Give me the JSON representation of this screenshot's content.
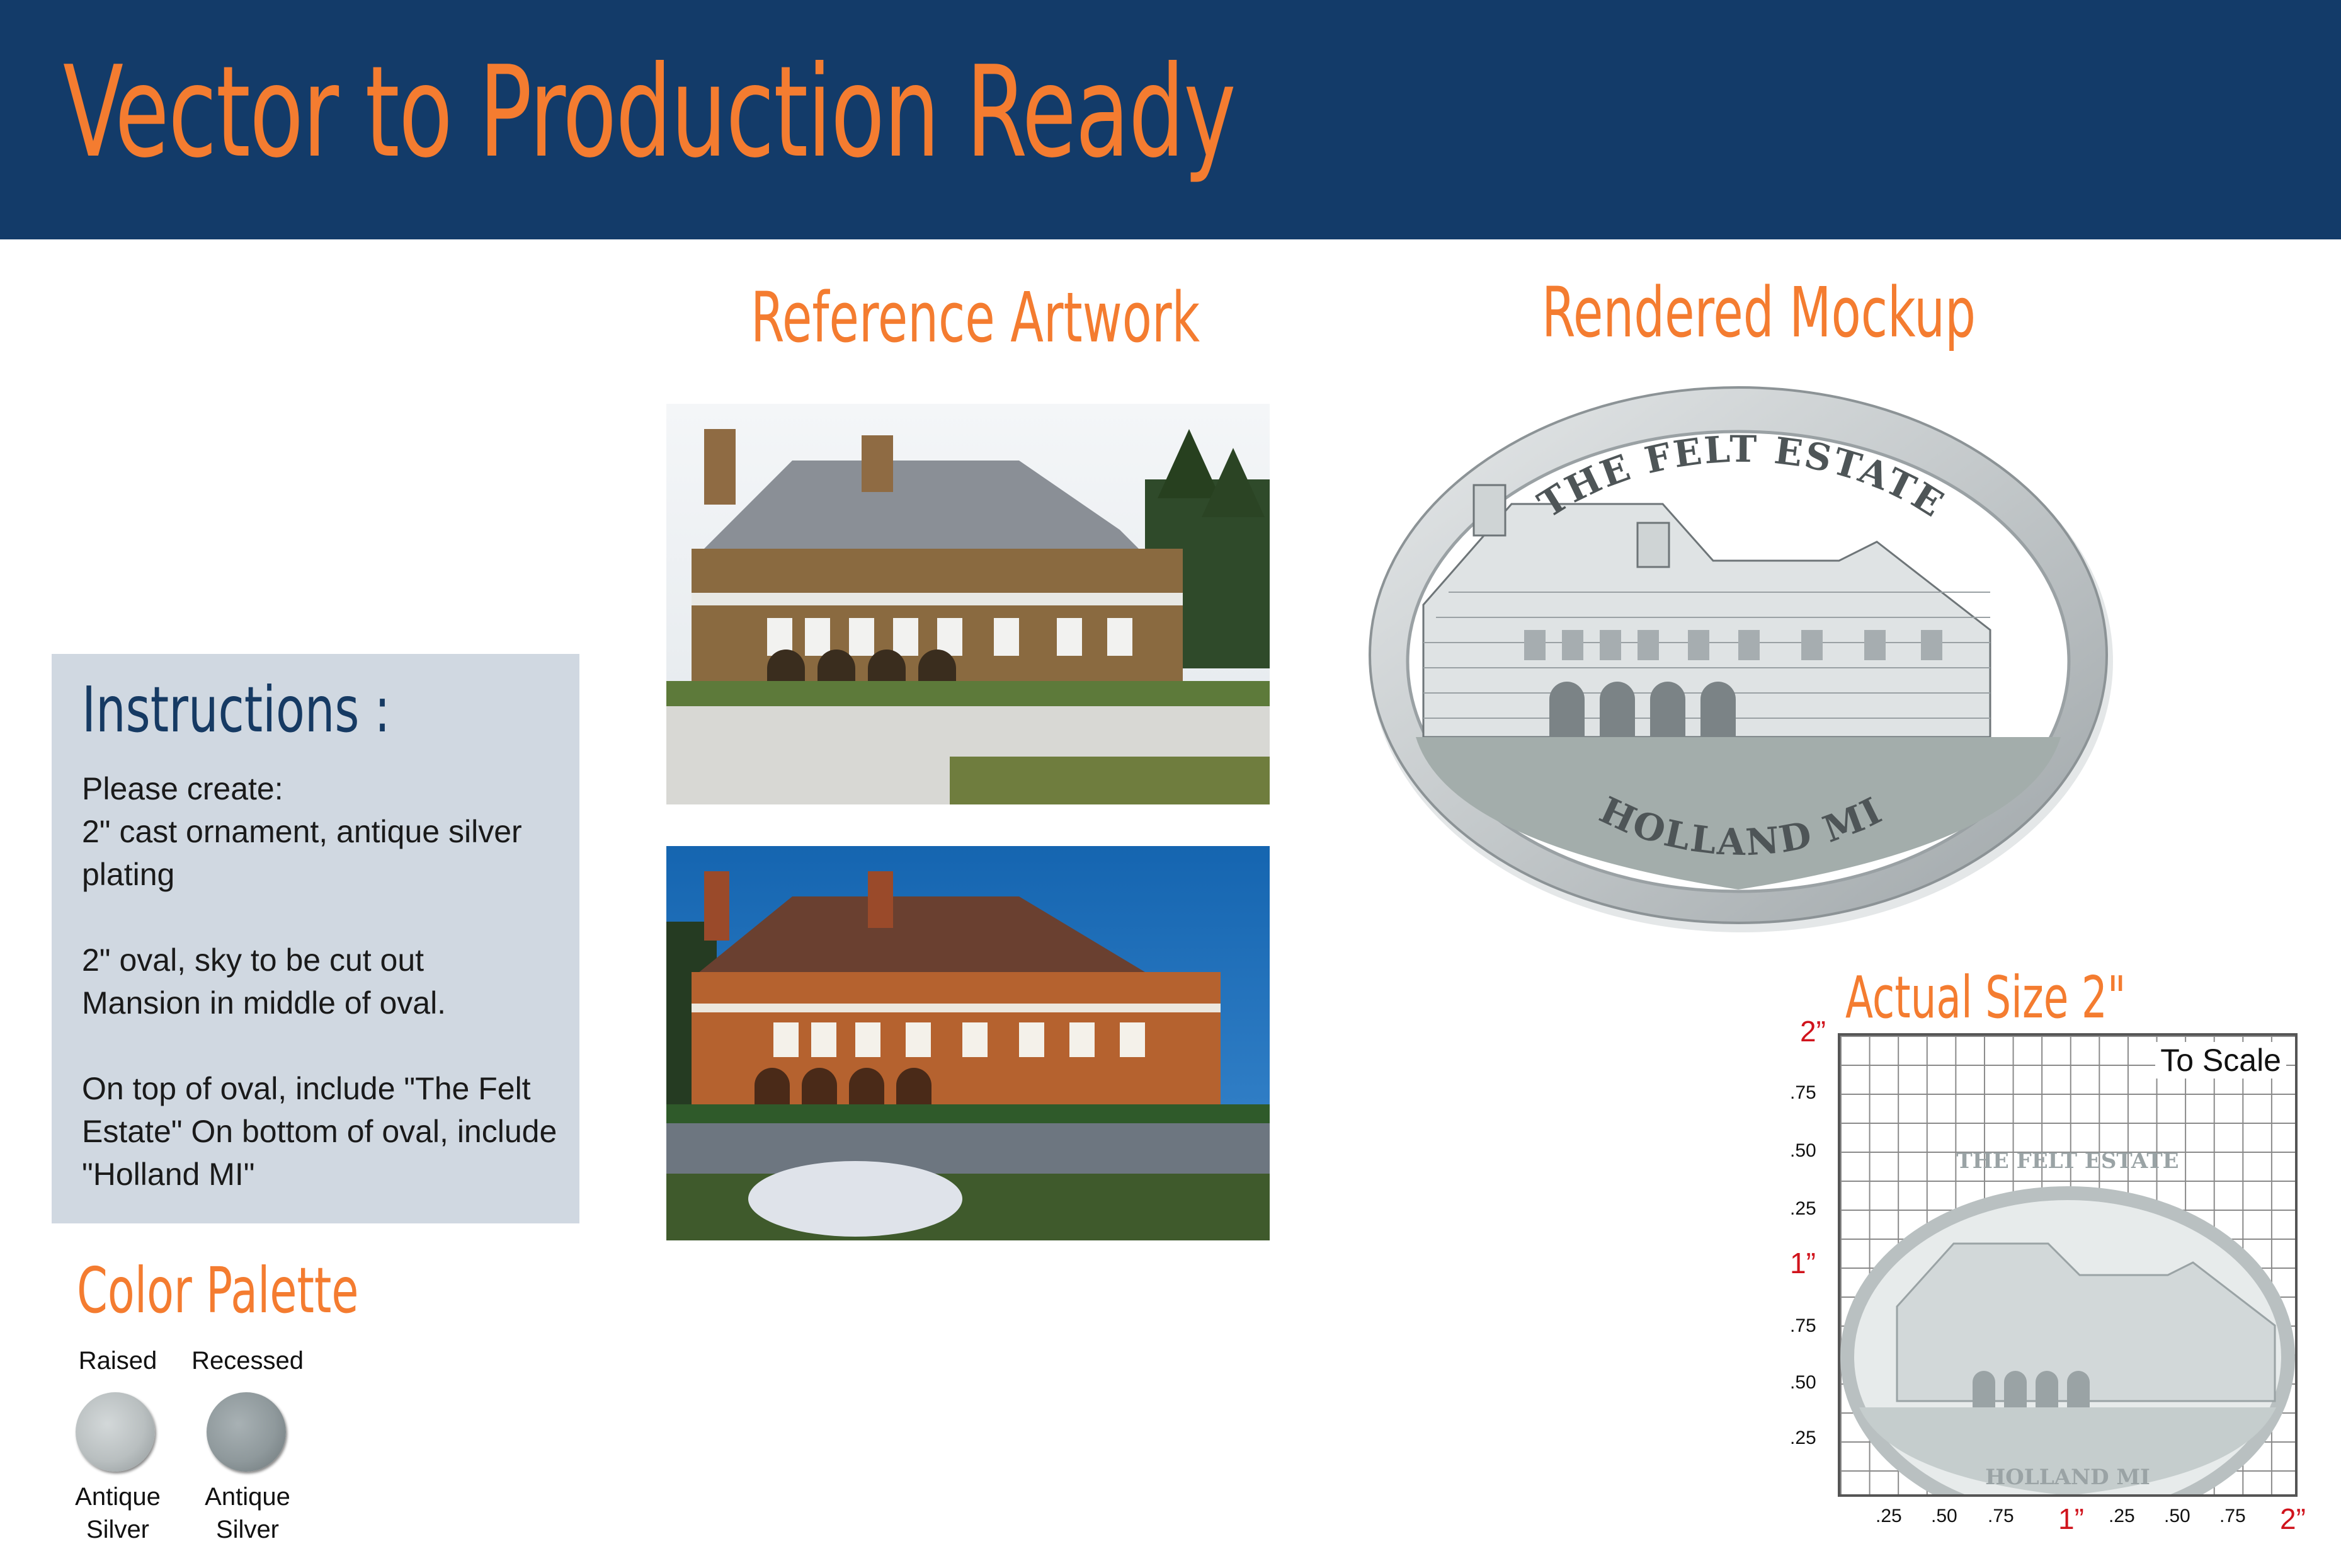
{
  "header": {
    "title": "Vector to Production Ready"
  },
  "sections": {
    "reference": "Reference Artwork",
    "mockup": "Rendered Mockup",
    "actual_size": "Actual Size 2\""
  },
  "instructions": {
    "title": "Instructions :",
    "lines": [
      "Please create:",
      "2\" cast ornament, antique silver plating",
      "2\" oval, sky to be cut out",
      "Mansion in middle of oval.",
      "On top of oval, include \"The Felt Estate\" On bottom of oval, include \"Holland MI\""
    ]
  },
  "palette": {
    "title": "Color Palette",
    "swatches": [
      {
        "label": "Raised",
        "name": "Antique Silver",
        "color": "#b9bfc0"
      },
      {
        "label": "Recessed",
        "name": "Antique Silver",
        "color": "#8f999c"
      }
    ]
  },
  "ornament": {
    "top_text": "THE FELT ESTATE",
    "bottom_text": "HOLLAND MI"
  },
  "scale_grid": {
    "to_scale": "To Scale",
    "y_labels": [
      "2”",
      ".75",
      ".50",
      ".25",
      "1”",
      ".75",
      ".50",
      ".25"
    ],
    "x_labels": [
      ".25",
      ".50",
      ".75",
      "1”",
      ".25",
      ".50",
      ".75",
      "2”"
    ]
  },
  "colors": {
    "navy": "#133b69",
    "orange": "#f47c30",
    "panel": "#d0d8e1",
    "red": "#d0131c"
  }
}
